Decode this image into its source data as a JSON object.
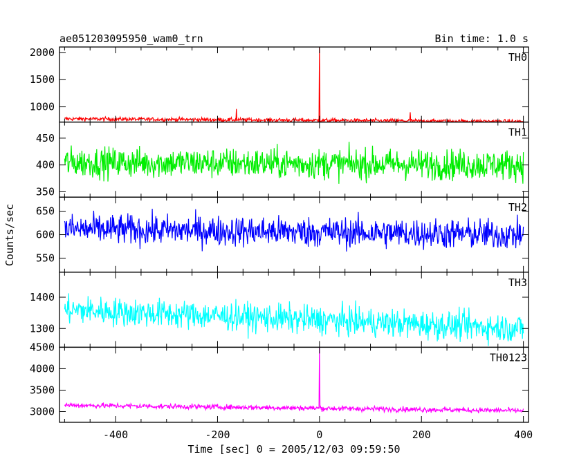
{
  "chart_data": {
    "type": "line",
    "title": "ae051203095950_wam0_trn",
    "subtitle": "Bin time: 1.0 s",
    "xlabel": "Time [sec] 0 = 2005/12/03 09:59:50",
    "ylabel": "Counts/sec",
    "xlim": [
      -510,
      410
    ],
    "xticks": [
      -400,
      -200,
      0,
      200,
      400
    ],
    "grid": false,
    "panels": [
      {
        "name": "TH0",
        "color": "#ff0000",
        "ylim": [
          720,
          2100
        ],
        "yticks": [
          1000,
          1500,
          2000
        ],
        "baseline": [
          [
            -500,
            780
          ],
          [
            400,
            730
          ]
        ],
        "noise": 35,
        "spikes": [
          [
            -163,
            960
          ],
          [
            178,
            900
          ],
          [
            0,
            2100
          ]
        ]
      },
      {
        "name": "TH1",
        "color": "#00ee00",
        "ylim": [
          340,
          480
        ],
        "yticks": [
          350,
          400,
          450
        ],
        "baseline": [
          [
            -500,
            405
          ],
          [
            400,
            400
          ]
        ],
        "noise": 28,
        "spikes": []
      },
      {
        "name": "TH2",
        "color": "#0000ff",
        "ylim": [
          520,
          680
        ],
        "yticks": [
          550,
          600,
          650
        ],
        "baseline": [
          [
            -500,
            612
          ],
          [
            400,
            600
          ]
        ],
        "noise": 32,
        "spikes": []
      },
      {
        "name": "TH3",
        "color": "#00ffff",
        "ylim": [
          1240,
          1480
        ],
        "yticks": [
          1300,
          1400
        ],
        "baseline": [
          [
            -500,
            1360
          ],
          [
            400,
            1300
          ]
        ],
        "noise": 45,
        "spikes": []
      },
      {
        "name": "TH0123",
        "color": "#ff00ff",
        "ylim": [
          2750,
          4500
        ],
        "yticks": [
          3000,
          3500,
          4000,
          4500
        ],
        "baseline": [
          [
            -500,
            3150
          ],
          [
            400,
            3020
          ]
        ],
        "noise": 60,
        "spikes": [
          [
            0,
            4500
          ]
        ]
      }
    ]
  }
}
